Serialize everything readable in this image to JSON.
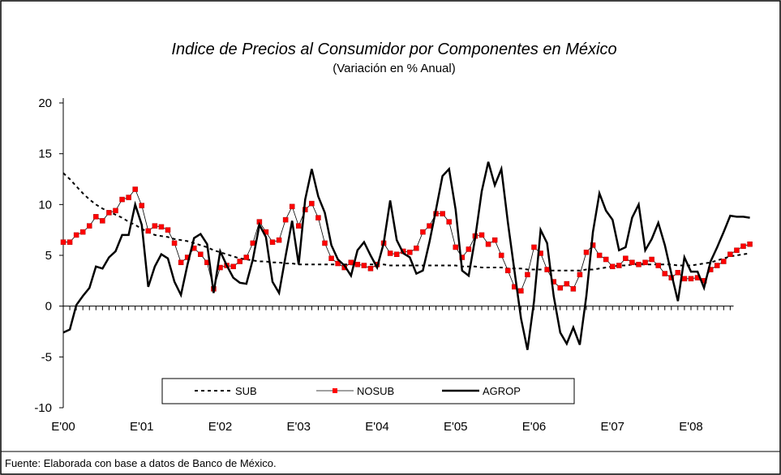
{
  "chart_data": {
    "type": "line",
    "title": "Indice de Precios al Consumidor  por  Componentes en México",
    "subtitle": "(Variación en % Anual)",
    "source": "Fuente: Elaborada con base a datos de Banco de México.",
    "categories": [
      "E'00",
      null,
      null,
      null,
      null,
      null,
      null,
      null,
      null,
      null,
      null,
      null,
      "E'01",
      null,
      null,
      null,
      null,
      null,
      null,
      null,
      null,
      null,
      null,
      null,
      "E'02",
      null,
      null,
      null,
      null,
      null,
      null,
      null,
      null,
      null,
      null,
      null,
      "E'03",
      null,
      null,
      null,
      null,
      null,
      null,
      null,
      null,
      null,
      null,
      null,
      "E'04",
      null,
      null,
      null,
      null,
      null,
      null,
      null,
      null,
      null,
      null,
      null,
      "E'05",
      null,
      null,
      null,
      null,
      null,
      null,
      null,
      null,
      null,
      null,
      null,
      "E'06",
      null,
      null,
      null,
      null,
      null,
      null,
      null,
      null,
      null,
      null,
      null,
      "E'07",
      null,
      null,
      null,
      null,
      null,
      null,
      null,
      null,
      null,
      null,
      null,
      "E'08",
      null,
      null,
      null,
      null,
      null,
      null,
      null,
      null,
      null
    ],
    "ylim": [
      -10,
      20
    ],
    "yticks": [
      -10,
      -5,
      0,
      5,
      10,
      15,
      20
    ],
    "series": [
      {
        "name": "SUB",
        "color": "#000000",
        "style": "dashed",
        "values": [
          13.1,
          12.5,
          11.8,
          11.1,
          10.5,
          10.0,
          9.6,
          9.3,
          9.0,
          8.7,
          8.3,
          8.0,
          7.6,
          7.3,
          7.0,
          6.9,
          6.8,
          6.6,
          6.5,
          6.4,
          6.2,
          6.0,
          5.8,
          5.5,
          5.3,
          5.1,
          4.9,
          4.7,
          4.6,
          4.5,
          4.4,
          4.4,
          4.3,
          4.3,
          4.2,
          4.2,
          4.1,
          4.1,
          4.1,
          4.1,
          4.1,
          4.1,
          4.1,
          4.1,
          4.1,
          4.1,
          4.1,
          4.1,
          4.1,
          4.1,
          4.0,
          4.0,
          4.0,
          4.0,
          4.0,
          4.0,
          4.0,
          4.0,
          4.0,
          4.0,
          4.0,
          3.9,
          3.9,
          3.9,
          3.8,
          3.8,
          3.8,
          3.8,
          3.7,
          3.7,
          3.7,
          3.6,
          3.6,
          3.6,
          3.5,
          3.5,
          3.5,
          3.5,
          3.5,
          3.5,
          3.6,
          3.6,
          3.7,
          3.8,
          3.9,
          4.0,
          4.0,
          4.1,
          4.1,
          4.1,
          4.1,
          4.1,
          4.1,
          4.1,
          4.0,
          4.0,
          4.0,
          4.1,
          4.2,
          4.3,
          4.5,
          4.7,
          4.9,
          5.0,
          5.1,
          5.2
        ]
      },
      {
        "name": "NOSUB",
        "color": "#000000",
        "marker_color": "#ff0000",
        "style": "markers",
        "values": [
          6.3,
          6.3,
          7.0,
          7.3,
          7.9,
          8.8,
          8.4,
          9.2,
          9.4,
          10.5,
          10.7,
          11.5,
          9.9,
          7.4,
          7.9,
          7.8,
          7.5,
          6.2,
          4.3,
          4.8,
          5.7,
          5.1,
          4.3,
          1.7,
          3.8,
          4.0,
          3.9,
          4.4,
          4.8,
          6.2,
          8.3,
          7.3,
          6.3,
          6.5,
          8.5,
          9.8,
          7.9,
          9.5,
          10.1,
          8.7,
          6.2,
          4.7,
          4.2,
          3.8,
          4.3,
          4.1,
          4.0,
          3.7,
          4.1,
          6.2,
          5.2,
          5.1,
          5.4,
          5.3,
          5.7,
          7.3,
          7.9,
          9.1,
          9.1,
          8.3,
          5.8,
          4.8,
          5.6,
          6.9,
          7.0,
          6.1,
          6.5,
          5.0,
          3.5,
          1.9,
          1.5,
          3.1,
          5.8,
          5.2,
          3.6,
          2.4,
          1.8,
          2.2,
          1.7,
          3.1,
          5.3,
          6.0,
          5.0,
          4.6,
          3.9,
          4.0,
          4.7,
          4.3,
          4.1,
          4.3,
          4.6,
          4.0,
          3.2,
          2.8,
          3.3,
          2.7,
          2.7,
          2.8,
          2.5,
          3.6,
          4.0,
          4.4,
          5.1,
          5.5,
          5.9,
          6.1
        ]
      },
      {
        "name": "AGROP",
        "color": "#000000",
        "style": "thick",
        "values": [
          -2.6,
          -2.3,
          0.1,
          1.0,
          1.8,
          3.9,
          3.7,
          4.8,
          5.4,
          7.0,
          7.0,
          10.0,
          8.0,
          1.9,
          3.9,
          5.1,
          4.7,
          2.4,
          1.1,
          4.1,
          6.7,
          7.1,
          6.1,
          1.3,
          5.4,
          4.0,
          2.8,
          2.3,
          2.2,
          4.6,
          8.0,
          6.8,
          2.4,
          1.3,
          4.9,
          8.4,
          4.1,
          10.5,
          13.5,
          10.8,
          9.2,
          6.0,
          4.6,
          4.0,
          3.0,
          5.5,
          6.3,
          5.0,
          3.8,
          6.2,
          10.4,
          6.5,
          5.2,
          4.8,
          3.2,
          3.5,
          6.3,
          9.5,
          12.8,
          13.5,
          9.5,
          3.5,
          3.0,
          6.7,
          11.3,
          14.2,
          11.9,
          13.5,
          8.2,
          3.5,
          -1.2,
          -4.3,
          0.5,
          7.5,
          6.2,
          1.0,
          -2.6,
          -3.7,
          -2.1,
          -3.8,
          1.0,
          7.3,
          11.1,
          9.4,
          8.5,
          5.5,
          5.8,
          8.7,
          10.0,
          5.5,
          6.6,
          8.2,
          6.0,
          3.2,
          0.5,
          4.8,
          3.4,
          3.4,
          1.8,
          4.4,
          5.8,
          7.3,
          8.9,
          8.8,
          8.8,
          8.7
        ]
      }
    ]
  }
}
